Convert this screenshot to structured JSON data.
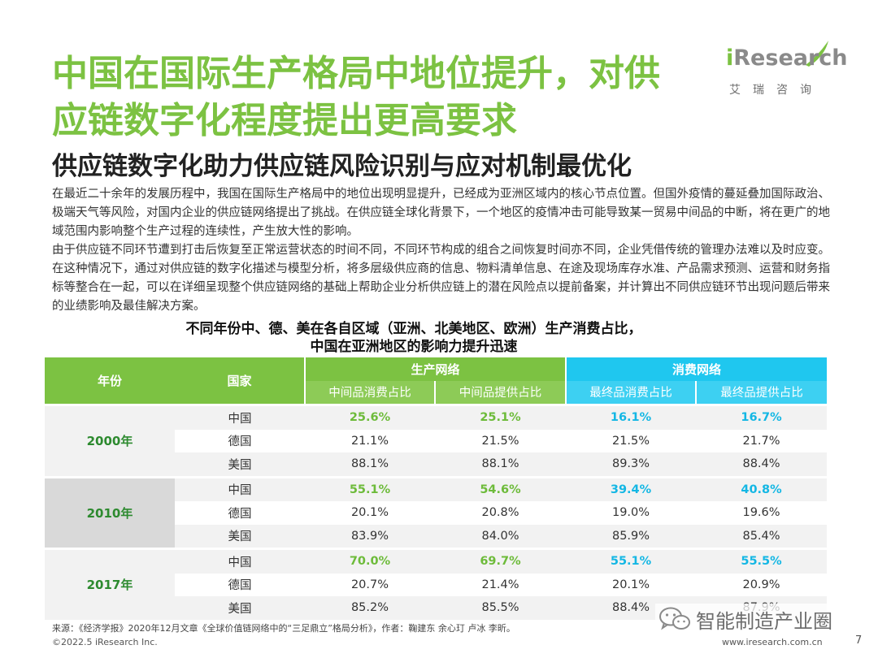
{
  "header": {
    "title_line1": "中国在国际生产格局中地位提升，对供",
    "title_line2": "应链数字化程度提出更高要求",
    "logo_en_i": "i",
    "logo_en_rest": "Research",
    "logo_cn": "艾瑞咨询",
    "subtitle": "供应链数字化助力供应链风险识别与应对机制最优化"
  },
  "body": {
    "paragraph1": "在最近二十余年的发展历程中，我国在国际生产格局中的地位出现明显提升，已经成为亚洲区域内的核心节点位置。但国外疫情的蔓延叠加国际政治、极端天气等风险，对国内企业的供应链网络提出了挑战。在供应链全球化背景下，一个地区的疫情冲击可能导致某一贸易中间品的中断，将在更广的地域范围内影响整个生产过程的连续性，产生放大性的影响。",
    "paragraph2": "由于供应链不同环节遭到打击后恢复至正常运营状态的时间不同，不同环节构成的组合之间恢复时间亦不同，企业凭借传统的管理办法难以及时应变。在这种情况下，通过对供应链的数字化描述与模型分析，将多层级供应商的信息、物料清单信息、在途及现场库存水准、产品需求预测、运营和财务指标等整合在一起，可以在详细呈现整个供应链网络的基础上帮助企业分析供应链上的潜在风险点以提前备案，并计算出不同供应链环节出现问题后带来的业绩影响及最佳解决方案。"
  },
  "table": {
    "title_line1": "不同年份中、德、美在各自区域（亚洲、北美地区、欧洲）生产消费占比，",
    "title_line2": "中国在亚洲地区的影响力提升迅速",
    "headers": {
      "year": "年份",
      "country": "国家",
      "production_network": "生产网络",
      "consumption_network": "消费网络",
      "col1": "中间品消费占比",
      "col2": "中间品提供占比",
      "col3": "最终品消费占比",
      "col4": "最终品提供占比"
    },
    "groups": [
      {
        "year": "2000年",
        "rows": [
          {
            "country": "中国",
            "values": [
              "25.6%",
              "25.1%",
              "16.1%",
              "16.7%"
            ]
          },
          {
            "country": "德国",
            "values": [
              "21.1%",
              "21.5%",
              "21.5%",
              "21.7%"
            ]
          },
          {
            "country": "美国",
            "values": [
              "88.1%",
              "88.1%",
              "89.3%",
              "88.4%"
            ]
          }
        ]
      },
      {
        "year": "2010年",
        "rows": [
          {
            "country": "中国",
            "values": [
              "55.1%",
              "54.6%",
              "39.4%",
              "40.8%"
            ]
          },
          {
            "country": "德国",
            "values": [
              "20.1%",
              "20.8%",
              "19.0%",
              "19.6%"
            ]
          },
          {
            "country": "美国",
            "values": [
              "83.9%",
              "84.0%",
              "85.9%",
              "85.4%"
            ]
          }
        ]
      },
      {
        "year": "2017年",
        "rows": [
          {
            "country": "中国",
            "values": [
              "70.0%",
              "69.7%",
              "55.1%",
              "55.5%"
            ]
          },
          {
            "country": "德国",
            "values": [
              "20.7%",
              "21.4%",
              "20.1%",
              "20.9%"
            ]
          },
          {
            "country": "美国",
            "values": [
              "85.2%",
              "85.5%",
              "88.4%",
              "87.9%"
            ]
          }
        ]
      }
    ]
  },
  "footer": {
    "source": "来源：《经济学报》2020年12月文章《全球价值链网络中的“三足鼎立”格局分析》，作者：鞠建东 余心玎 卢冰 李昕。",
    "copyright": "©2022.5 iResearch Inc.",
    "website": "www.iresearch.com.cn",
    "page_number": "7",
    "watermark": "智能制造产业圈"
  },
  "colors": {
    "accent_green": "#7cc242",
    "accent_blue": "#1fc7ef",
    "year_green": "#2d8a2f"
  },
  "icons": {
    "logo": "iresearch-swoosh-icon",
    "watermark": "wechat-icon"
  }
}
